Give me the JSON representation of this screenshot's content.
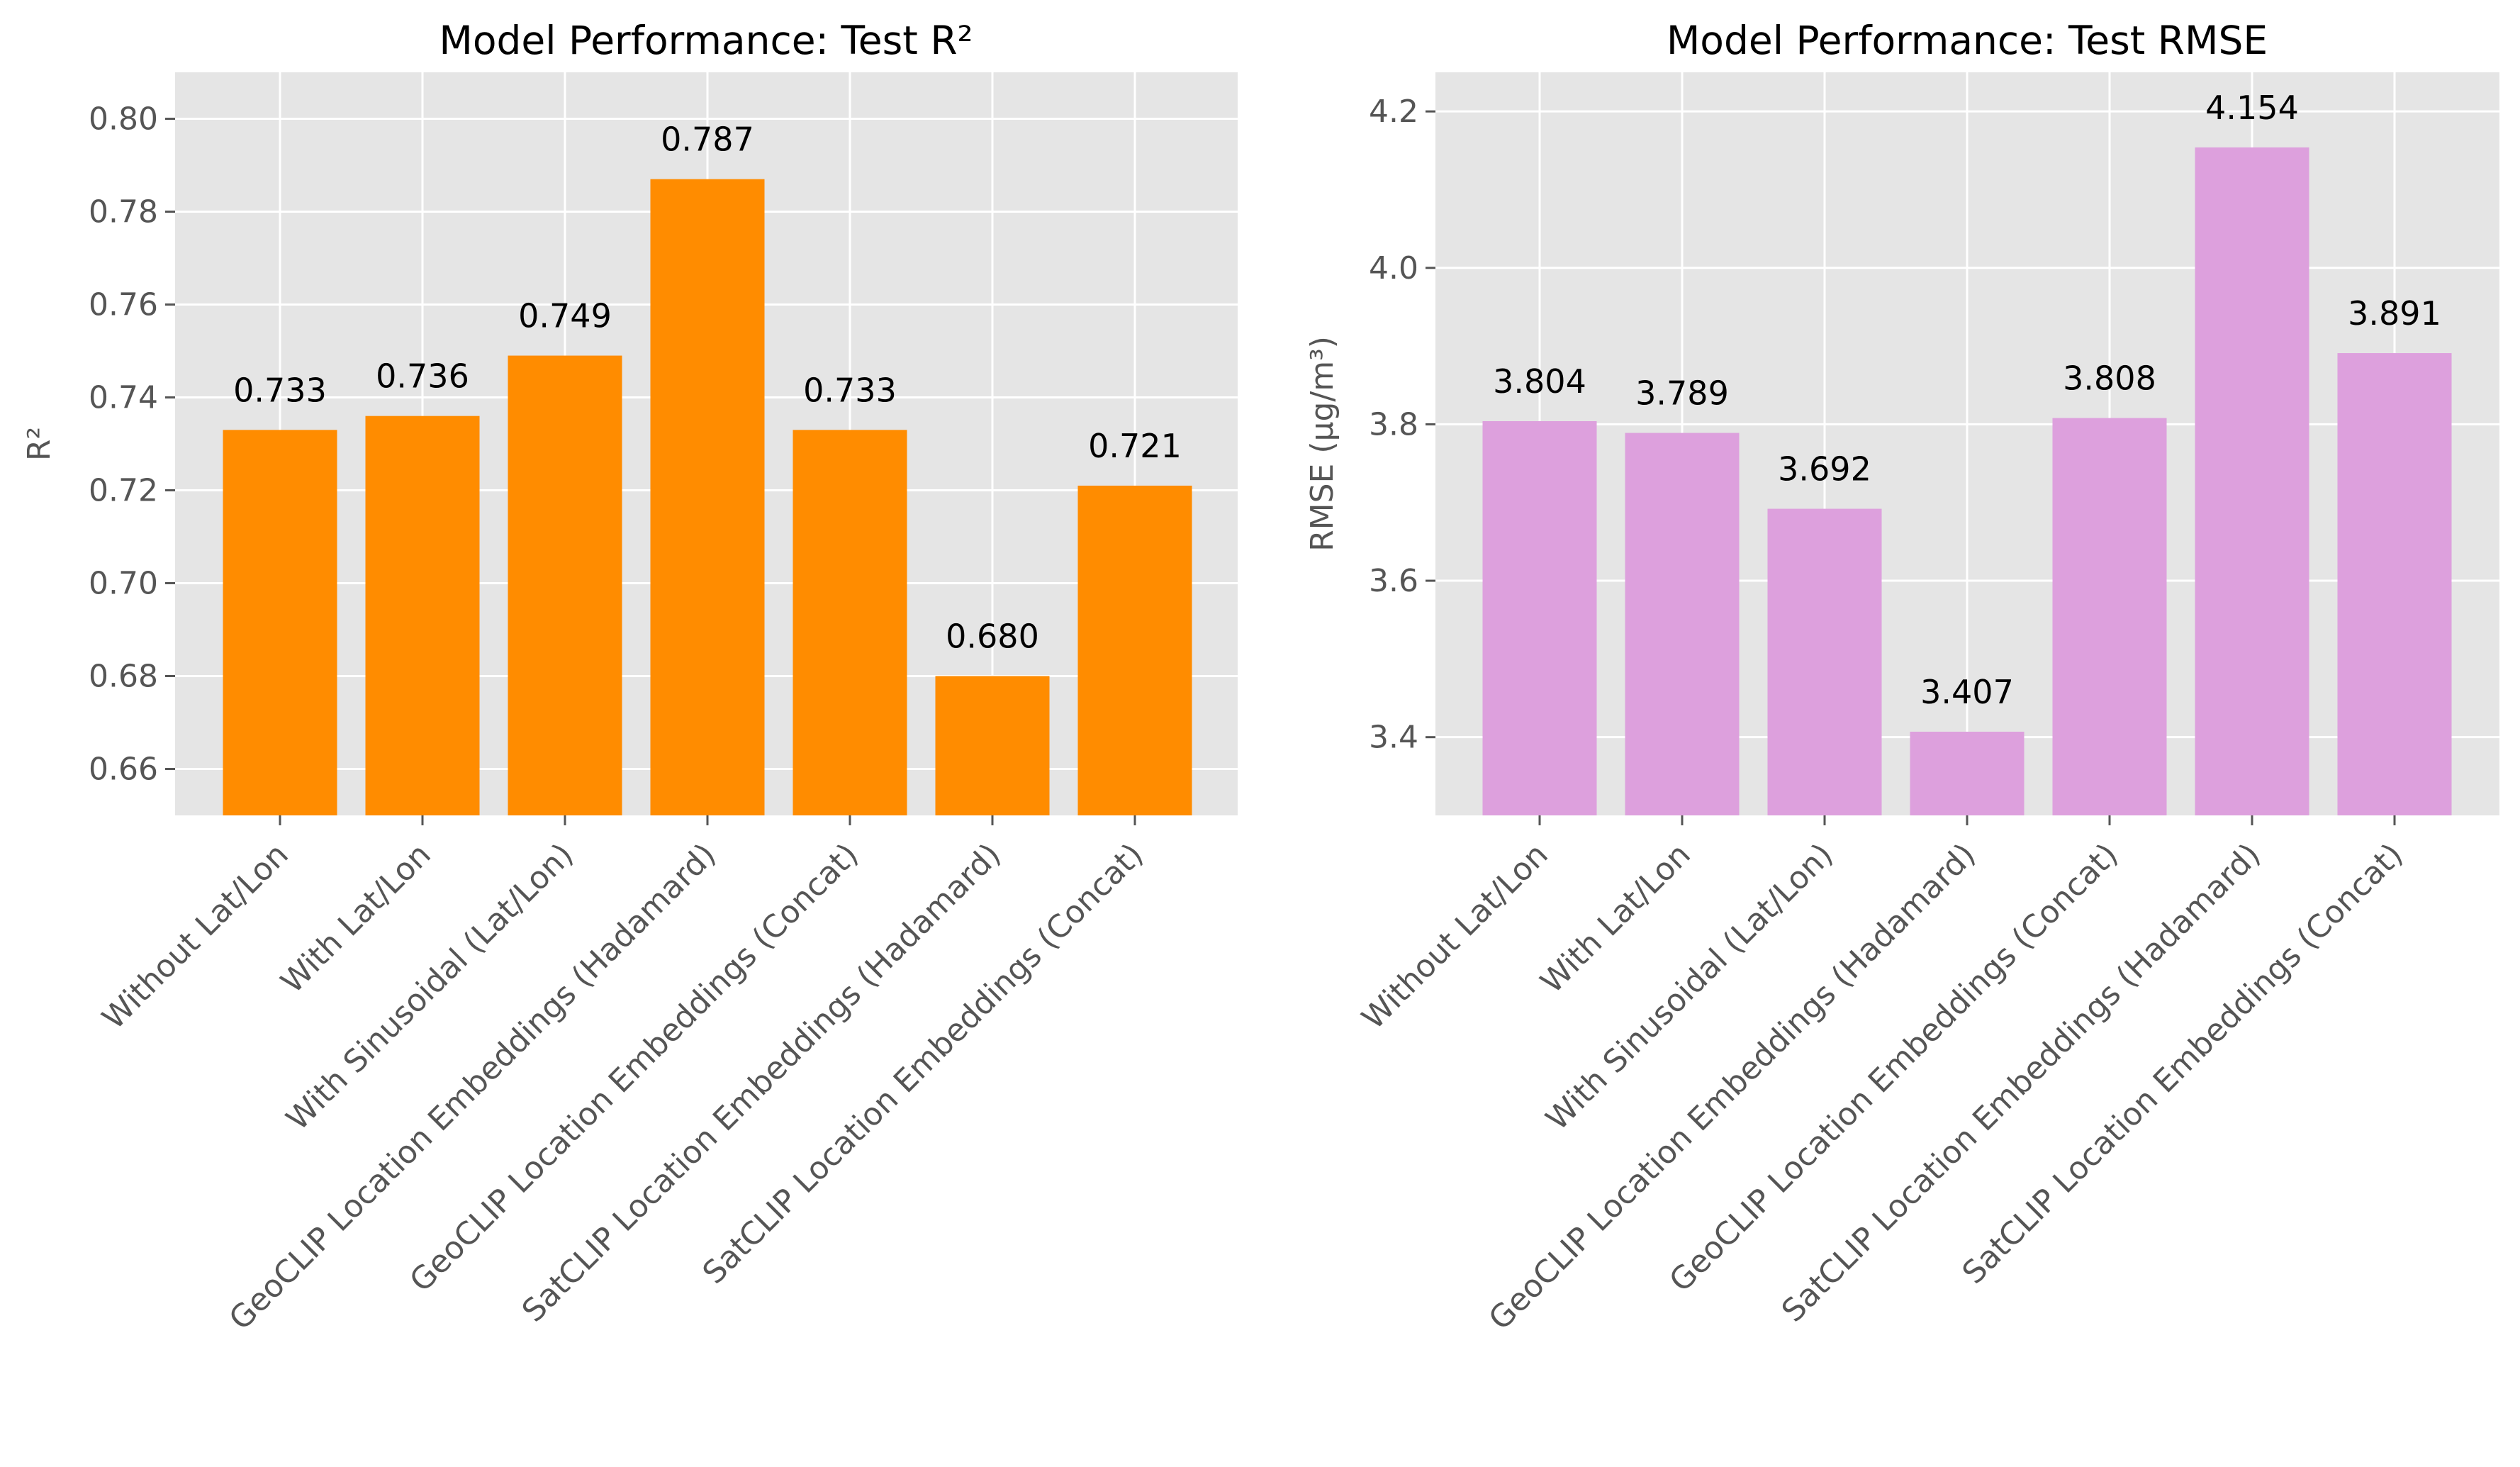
{
  "chart_data": [
    {
      "type": "bar",
      "title": "Model Performance: Test R²",
      "xlabel": "",
      "ylabel": "R²",
      "categories": [
        "Without Lat/Lon",
        "With Lat/Lon",
        "With Sinusoidal (Lat/Lon)",
        "GeoCLIP Location Embeddings (Hadamard)",
        "GeoCLIP Location Embeddings (Concat)",
        "SatCLIP Location Embeddings (Hadamard)",
        "SatCLIP Location Embeddings (Concat)"
      ],
      "values": [
        0.733,
        0.736,
        0.749,
        0.787,
        0.733,
        0.68,
        0.721
      ],
      "value_labels": [
        "0.733",
        "0.736",
        "0.749",
        "0.787",
        "0.733",
        "0.680",
        "0.721"
      ],
      "ylim": [
        0.65,
        0.81
      ],
      "yticks": [
        0.66,
        0.68,
        0.7,
        0.72,
        0.74,
        0.76,
        0.78,
        0.8
      ],
      "ytick_labels": [
        "0.66",
        "0.68",
        "0.70",
        "0.72",
        "0.74",
        "0.76",
        "0.78",
        "0.80"
      ],
      "bar_color": "#ff8c00",
      "grid": true,
      "background": "#e5e5e5"
    },
    {
      "type": "bar",
      "title": "Model Performance: Test RMSE",
      "xlabel": "",
      "ylabel": "RMSE (μg/m³)",
      "categories": [
        "Without Lat/Lon",
        "With Lat/Lon",
        "With Sinusoidal (Lat/Lon)",
        "GeoCLIP Location Embeddings (Hadamard)",
        "GeoCLIP Location Embeddings (Concat)",
        "SatCLIP Location Embeddings (Hadamard)",
        "SatCLIP Location Embeddings (Concat)"
      ],
      "values": [
        3.804,
        3.789,
        3.692,
        3.407,
        3.808,
        4.154,
        3.891
      ],
      "value_labels": [
        "3.804",
        "3.789",
        "3.692",
        "3.407",
        "3.808",
        "4.154",
        "3.891"
      ],
      "ylim": [
        3.3,
        4.25
      ],
      "yticks": [
        3.4,
        3.6,
        3.8,
        4.0,
        4.2
      ],
      "ytick_labels": [
        "3.4",
        "3.6",
        "3.8",
        "4.0",
        "4.2"
      ],
      "bar_color": "#dda0dd",
      "grid": true,
      "background": "#e5e5e5"
    }
  ]
}
